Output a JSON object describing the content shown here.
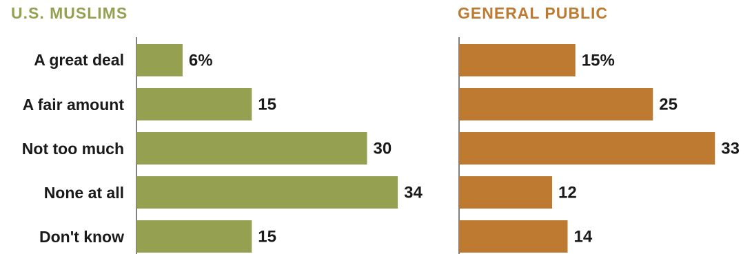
{
  "chart_data": [
    {
      "type": "bar",
      "title": "U.S. MUSLIMS",
      "color": "#95a050",
      "categories": [
        "A great deal",
        "A fair amount",
        "Not too much",
        "None at all",
        "Don't know"
      ],
      "values": [
        6,
        15,
        30,
        34,
        15
      ],
      "value_labels": [
        "6%",
        "15",
        "30",
        "34",
        "15"
      ]
    },
    {
      "type": "bar",
      "title": "GENERAL PUBLIC",
      "color": "#bd7a30",
      "categories": [
        "A great deal",
        "A fair amount",
        "Not too much",
        "None at all",
        "Don't know"
      ],
      "values": [
        15,
        25,
        33,
        12,
        14
      ],
      "value_labels": [
        "15%",
        "25",
        "33",
        "12",
        "14"
      ]
    }
  ]
}
